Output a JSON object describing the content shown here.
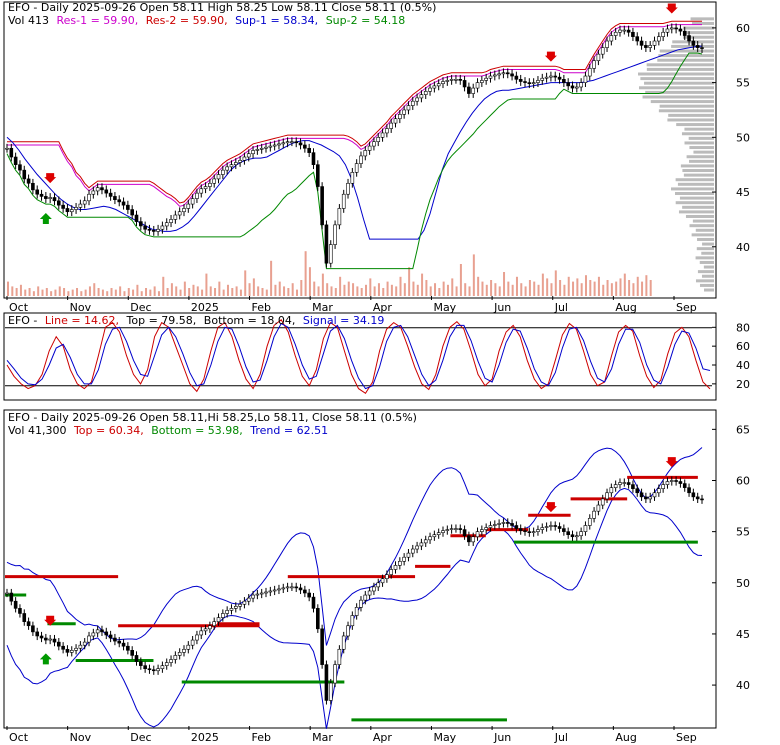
{
  "chart_data": [
    {
      "type": "candlestick",
      "panel": "price",
      "header": {
        "title": "EFO - Daily 2025-09-26 Open 58.11   High 58.25   Low 58.11   Close 58.11 (0.5%)",
        "vol_label": "Vol 413",
        "res1_label": "Res-1 = 59.90,",
        "res2_label": "Res-2 = 59.90,",
        "sup1_label": "Sup-1 = 58.34,",
        "sup2_label": "Sup-2 = 54.18"
      },
      "colors": {
        "res1": "#cc00cc",
        "res2": "#cc0000",
        "sup1": "#0000cc",
        "sup2": "#008800",
        "volume": "#e8a090"
      },
      "yticks": [
        40,
        45,
        50,
        55,
        60
      ],
      "ylim": [
        35.5,
        62
      ],
      "xticks": [
        "Oct",
        "Nov",
        "Dec",
        "2025",
        "Feb",
        "Mar",
        "Apr",
        "May",
        "Jun",
        "Jul",
        "Aug",
        "Sep"
      ],
      "series_close": [
        49,
        48.2,
        47.5,
        47,
        46.2,
        45.8,
        45.2,
        44.8,
        44.6,
        44.4,
        44.5,
        44.2,
        43.8,
        43.5,
        43.2,
        43.4,
        43.6,
        43.9,
        44.2,
        44.8,
        45.1,
        45.4,
        45.2,
        44.9,
        44.6,
        44.3,
        44.1,
        43.8,
        43.4,
        42.9,
        42.3,
        41.9,
        41.6,
        41.5,
        41.4,
        41.6,
        41.9,
        42.2,
        42.5,
        42.9,
        43.2,
        43.5,
        43.9,
        44.4,
        44.9,
        45.3,
        45.5,
        45.8,
        46.2,
        46.6,
        47,
        47.3,
        47.5,
        47.7,
        47.9,
        48.2,
        48.5,
        48.8,
        48.9,
        49,
        49.1,
        49.2,
        49.3,
        49.4,
        49.5,
        49.6,
        49.6,
        49.5,
        49.3,
        49,
        48.6,
        47.5,
        45.5,
        42,
        38.5,
        40.2,
        42,
        43.5,
        44.8,
        45.8,
        46.8,
        47.6,
        48.3,
        48.8,
        49.2,
        49.6,
        50,
        50.4,
        50.8,
        51.3,
        51.7,
        52.1,
        52.5,
        52.9,
        53.3,
        53.6,
        53.9,
        54.2,
        54.5,
        54.7,
        54.9,
        55.1,
        55.2,
        55.3,
        55.3,
        55.2,
        54.6,
        54,
        54.5,
        55,
        55.2,
        55.4,
        55.6,
        55.7,
        55.8,
        55.9,
        55.8,
        55.6,
        55.3,
        55.1,
        55,
        54.9,
        55,
        55.2,
        55.4,
        55.5,
        55.6,
        55.5,
        55.3,
        55,
        54.7,
        54.5,
        54.6,
        55,
        55.6,
        56.3,
        57,
        57.6,
        58.2,
        58.8,
        59.3,
        59.6,
        59.8,
        59.8,
        59.6,
        59.2,
        58.8,
        58.4,
        58.2,
        58.4,
        58.8,
        59.2,
        59.6,
        59.9,
        60,
        59.9,
        59.7,
        59.3,
        58.8,
        58.4,
        58.2,
        58.11
      ],
      "series_sup1": [
        50,
        49.5,
        48.8,
        48,
        47.3,
        46.6,
        46,
        45.4,
        44.8,
        44.3,
        43.9,
        43.6,
        43.4,
        43.4,
        43.5,
        43.6,
        43.7,
        43.6,
        43.4,
        43.1,
        42.8,
        42.5,
        42.2,
        41.9,
        41.6,
        41.5,
        41.4,
        41.4,
        41.5,
        41.8,
        42.2,
        42.8,
        43.5,
        44.2,
        44.9,
        45.6,
        46.3,
        47,
        47.5,
        47.8,
        48,
        48.1,
        48.1,
        48.2,
        48.5,
        48.8,
        49.1,
        49.4,
        49.6,
        49.7,
        49.7,
        49.5,
        49.3,
        49,
        48.7,
        48.3,
        47.5,
        46.2,
        44.5,
        42.5,
        40.7,
        40.7,
        40.7,
        40.7,
        40.7,
        40.7,
        40.7,
        40.7,
        40.7,
        41.5,
        43,
        45,
        47,
        48.5,
        49.5,
        50.5,
        51.4,
        52.2,
        52.9,
        53.5,
        53.9,
        54.2,
        54.3,
        54.3,
        54.4,
        54.5,
        54.6,
        54.7,
        54.8,
        54.9,
        55,
        55,
        55,
        55,
        55,
        55,
        55.1,
        55.2,
        55.4,
        55.6,
        55.8,
        56,
        56.2,
        56.4,
        56.6,
        56.8,
        57,
        57.2,
        57.4,
        57.6,
        57.8,
        58,
        58.1,
        58.2,
        58.3,
        58.34
      ],
      "vol_bars": [
        9,
        6,
        5,
        7,
        4,
        5,
        3,
        6,
        4,
        5,
        3,
        4,
        6,
        5,
        3,
        4,
        5,
        3,
        4,
        6,
        8,
        5,
        4,
        3,
        5,
        4,
        6,
        3,
        5,
        4,
        7,
        3,
        5,
        4,
        6,
        3,
        12,
        5,
        8,
        6,
        4,
        9,
        5,
        7,
        6,
        4,
        14,
        6,
        5,
        9,
        4,
        7,
        5,
        6,
        4,
        16,
        8,
        11,
        6,
        5,
        4,
        22,
        7,
        9,
        6,
        5,
        8,
        4,
        10,
        28,
        18,
        9,
        6,
        14,
        8,
        6,
        5,
        12,
        7,
        9,
        8,
        6,
        5,
        7,
        11,
        6,
        8,
        5,
        9,
        7,
        6,
        12,
        8,
        18,
        9,
        7,
        14,
        10,
        6,
        8,
        5,
        9,
        7,
        11,
        6,
        20,
        8,
        6,
        26,
        12,
        9,
        7,
        10,
        8,
        6,
        15,
        9,
        7,
        12,
        8,
        6,
        10,
        9,
        7,
        14,
        11,
        8,
        16,
        10,
        7,
        12,
        9,
        11,
        8,
        13,
        10,
        9,
        12,
        7,
        10,
        8,
        9,
        11,
        14,
        10,
        8,
        12,
        9,
        13,
        10
      ]
    },
    {
      "type": "line",
      "panel": "stochastic",
      "header": {
        "title_prefix": "EFO -",
        "line_label": "Line = 14.62,",
        "top_label": "Top = 79.58,",
        "bottom_label": "Bottom = 18.04,",
        "signal_label": "Signal = 34.19"
      },
      "colors": {
        "line": "#cc0000",
        "signal": "#0000cc",
        "bands": "#000000"
      },
      "yticks": [
        20,
        40,
        60,
        80
      ],
      "ylim": [
        5,
        92
      ],
      "series": [
        {
          "name": "Line",
          "values": [
            40,
            28,
            20,
            15,
            18,
            30,
            55,
            70,
            60,
            35,
            20,
            15,
            22,
            50,
            80,
            85,
            75,
            50,
            30,
            20,
            35,
            70,
            85,
            80,
            60,
            40,
            20,
            12,
            25,
            55,
            80,
            85,
            70,
            45,
            25,
            15,
            30,
            60,
            82,
            88,
            75,
            50,
            28,
            18,
            35,
            68,
            85,
            80,
            55,
            30,
            15,
            10,
            22,
            55,
            78,
            85,
            80,
            60,
            38,
            20,
            14,
            30,
            60,
            80,
            86,
            78,
            55,
            30,
            18,
            25,
            55,
            75,
            82,
            70,
            45,
            25,
            15,
            20,
            45,
            72,
            84,
            78,
            55,
            30,
            18,
            22,
            50,
            75,
            82,
            76,
            50,
            28,
            16,
            24,
            52,
            74,
            80,
            70,
            45,
            22,
            14.62
          ]
        },
        {
          "name": "Signal",
          "values": [
            45,
            36,
            26,
            20,
            19,
            25,
            40,
            58,
            62,
            48,
            30,
            20,
            20,
            35,
            62,
            78,
            80,
            65,
            45,
            30,
            28,
            50,
            72,
            80,
            70,
            52,
            32,
            18,
            20,
            40,
            65,
            80,
            78,
            60,
            38,
            22,
            24,
            45,
            70,
            84,
            80,
            62,
            40,
            25,
            28,
            52,
            76,
            82,
            68,
            45,
            26,
            15,
            18,
            38,
            65,
            80,
            82,
            70,
            50,
            30,
            18,
            24,
            45,
            70,
            82,
            82,
            66,
            44,
            26,
            22,
            40,
            64,
            78,
            76,
            58,
            36,
            22,
            18,
            32,
            58,
            78,
            80,
            66,
            44,
            26,
            22,
            36,
            62,
            78,
            78,
            64,
            40,
            24,
            20,
            38,
            62,
            76,
            74,
            58,
            36,
            34.19
          ]
        }
      ],
      "top_band": 79.58,
      "bottom_band": 18.04
    },
    {
      "type": "candlestick",
      "panel": "trend",
      "header": {
        "title": "EFO - Daily 2025-09-26 Open 58.11,Hi 58.25,Lo 58.11, Close 58.11 (0.5%)",
        "vol_label": "Vol 41,300",
        "top_label": "Top = 60.34,",
        "bottom_label": "Bottom = 53.98,",
        "trend_label": "Trend = 62.51"
      },
      "colors": {
        "top": "#cc0000",
        "bottom": "#008800",
        "trend": "#0000cc"
      },
      "yticks": [
        40,
        45,
        50,
        55,
        60,
        65
      ],
      "ylim": [
        36,
        66.5
      ],
      "xticks": [
        "Oct",
        "Nov",
        "Dec",
        "2025",
        "Feb",
        "Mar",
        "Apr",
        "May",
        "Jun",
        "Jul",
        "Aug",
        "Sep"
      ],
      "resistance_levels": [
        {
          "from": 0.0,
          "to": 0.16,
          "value": 50.6
        },
        {
          "from": 0.16,
          "to": 0.36,
          "value": 45.8
        },
        {
          "from": 0.3,
          "to": 0.36,
          "value": 46
        },
        {
          "from": 0.4,
          "to": 0.58,
          "value": 50.6
        },
        {
          "from": 0.58,
          "to": 0.63,
          "value": 51.6
        },
        {
          "from": 0.63,
          "to": 0.68,
          "value": 54.6
        },
        {
          "from": 0.68,
          "to": 0.74,
          "value": 55.2
        },
        {
          "from": 0.74,
          "to": 0.8,
          "value": 56.6
        },
        {
          "from": 0.8,
          "to": 0.88,
          "value": 58.2
        },
        {
          "from": 0.88,
          "to": 0.98,
          "value": 60.3
        }
      ],
      "support_levels": [
        {
          "from": 0.0,
          "to": 0.03,
          "value": 48.8
        },
        {
          "from": 0.06,
          "to": 0.1,
          "value": 46
        },
        {
          "from": 0.1,
          "to": 0.21,
          "value": 42.4
        },
        {
          "from": 0.25,
          "to": 0.48,
          "value": 40.3
        },
        {
          "from": 0.49,
          "to": 0.71,
          "value": 36.6
        },
        {
          "from": 0.72,
          "to": 0.98,
          "value": 53.98
        }
      ]
    }
  ]
}
